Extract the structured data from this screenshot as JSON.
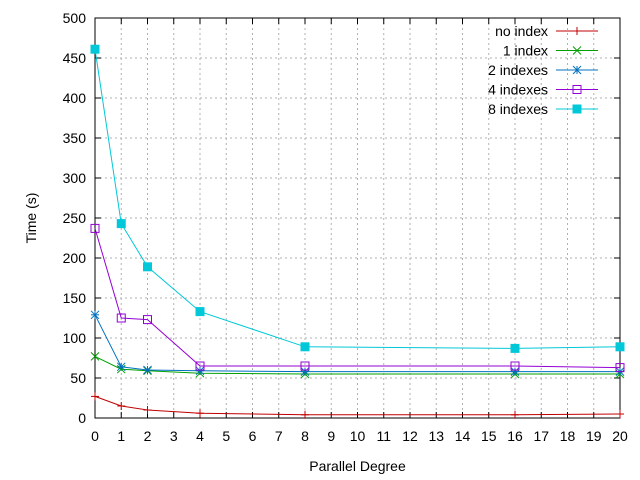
{
  "chart_data": {
    "type": "line",
    "title": "",
    "xlabel": "Parallel Degree",
    "ylabel": "Time (s)",
    "xlim": [
      0,
      20
    ],
    "ylim": [
      0,
      500
    ],
    "xticks": [
      0,
      1,
      2,
      3,
      4,
      5,
      6,
      7,
      8,
      9,
      10,
      11,
      12,
      13,
      14,
      15,
      16,
      17,
      18,
      19,
      20
    ],
    "yticks": [
      0,
      50,
      100,
      150,
      200,
      250,
      300,
      350,
      400,
      450,
      500
    ],
    "grid": true,
    "legend_position": "top-right",
    "series": [
      {
        "name": "no index",
        "color": "#c00000",
        "marker": "plus",
        "x": [
          0,
          1,
          2,
          4,
          8,
          16,
          20
        ],
        "y": [
          27,
          15,
          10,
          6,
          4,
          4,
          5
        ]
      },
      {
        "name": "1 index",
        "color": "#00a000",
        "marker": "cross",
        "x": [
          0,
          1,
          2,
          4,
          8,
          16,
          20
        ],
        "y": [
          77,
          61,
          59,
          56,
          55,
          55,
          55
        ]
      },
      {
        "name": "2 indexes",
        "color": "#0070c0",
        "marker": "star",
        "x": [
          0,
          1,
          2,
          4,
          8,
          16,
          20
        ],
        "y": [
          129,
          64,
          60,
          59,
          58,
          58,
          58
        ]
      },
      {
        "name": "4 indexes",
        "color": "#9400d3",
        "marker": "square",
        "x": [
          0,
          1,
          2,
          4,
          8,
          16,
          20
        ],
        "y": [
          237,
          125,
          123,
          65,
          65,
          65,
          63
        ]
      },
      {
        "name": "8 indexes",
        "color": "#00c8d8",
        "marker": "filled-square",
        "x": [
          0,
          1,
          2,
          4,
          8,
          16,
          20
        ],
        "y": [
          461,
          243,
          189,
          133,
          89,
          87,
          89
        ]
      }
    ]
  }
}
